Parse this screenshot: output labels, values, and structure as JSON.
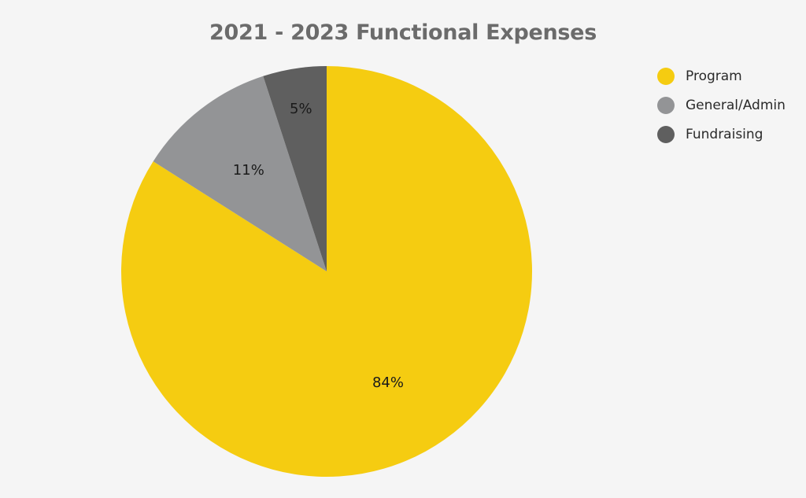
{
  "chart_data": {
    "type": "pie",
    "title": "2021 - 2023 Functional Expenses",
    "categories": [
      "Program",
      "General/Admin",
      "Fundraising"
    ],
    "values": [
      84,
      11,
      5
    ],
    "data_labels": [
      "84%",
      "11%",
      "5%"
    ],
    "colors": [
      "#f5cc11",
      "#939496",
      "#5f5f5f"
    ],
    "start_angle": "12 o'clock",
    "direction": "clockwise",
    "legend_position": "top-right"
  }
}
